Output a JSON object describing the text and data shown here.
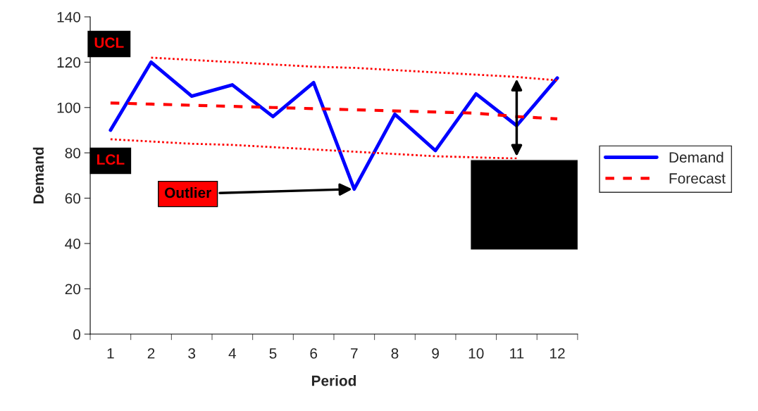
{
  "chart_data": {
    "type": "line",
    "xlabel": "Period",
    "ylabel": "Demand",
    "categories": [
      "1",
      "2",
      "3",
      "4",
      "5",
      "6",
      "7",
      "8",
      "9",
      "10",
      "11",
      "12"
    ],
    "series": [
      {
        "name": "Demand",
        "color": "#0000ff",
        "line_style": "solid",
        "values": [
          90,
          120,
          105,
          110,
          96,
          111,
          64,
          97,
          81,
          106,
          92,
          113
        ]
      },
      {
        "name": "Forecast",
        "color": "#ff0000",
        "line_style": "dashed",
        "values": [
          102,
          101.5,
          101,
          100.5,
          100,
          99.5,
          99,
          98.5,
          98,
          97.5,
          96,
          95
        ]
      },
      {
        "color": "#ff0000",
        "line_style": "dotted",
        "values": [
          null,
          122,
          121,
          120,
          119,
          118,
          117.5,
          116.5,
          115.5,
          114.5,
          113.5,
          112
        ]
      },
      {
        "color": "#ff0000",
        "line_style": "dotted",
        "values": [
          86,
          85,
          84,
          83.5,
          82.5,
          81.5,
          80.5,
          79.5,
          78.5,
          78,
          77.5,
          null
        ]
      }
    ],
    "annotations": [
      {
        "text": "UCL",
        "x": "2",
        "y": 122
      },
      {
        "text": "LCL",
        "x": "1",
        "y": 86
      },
      {
        "text": "Outlier",
        "x": "7",
        "y": 64
      }
    ],
    "ylim": [
      0,
      140
    ],
    "yticks": [
      0,
      20,
      40,
      60,
      80,
      100,
      120,
      140
    ],
    "grid": false,
    "legend": "right"
  }
}
